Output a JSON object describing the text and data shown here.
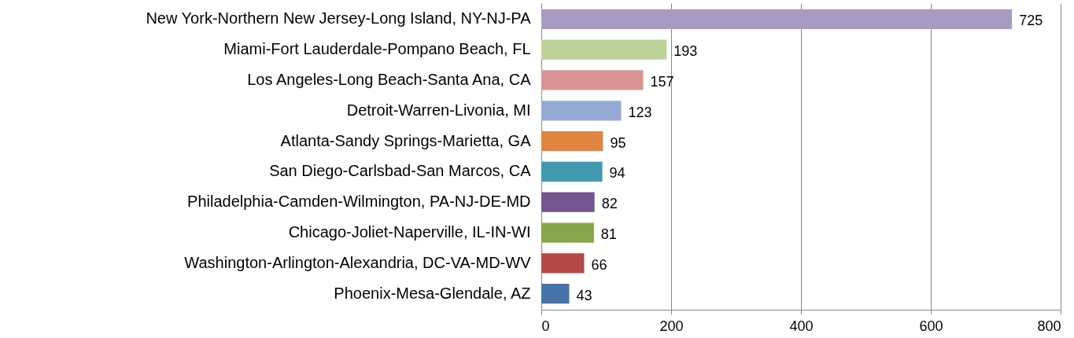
{
  "chart_data": {
    "type": "bar",
    "orientation": "horizontal",
    "categories": [
      "New York-Northern New Jersey-Long Island, NY-NJ-PA",
      "Miami-Fort Lauderdale-Pompano Beach, FL",
      "Los Angeles-Long Beach-Santa Ana, CA",
      "Detroit-Warren-Livonia, MI",
      "Atlanta-Sandy Springs-Marietta, GA",
      "San Diego-Carlsbad-San Marcos, CA",
      "Philadelphia-Camden-Wilmington, PA-NJ-DE-MD",
      "Chicago-Joliet-Naperville, IL-IN-WI",
      "Washington-Arlington-Alexandria, DC-VA-MD-WV",
      "Phoenix-Mesa-Glendale, AZ"
    ],
    "values": [
      725,
      193,
      157,
      123,
      95,
      94,
      82,
      81,
      66,
      43
    ],
    "colors": [
      "#a99bc0",
      "#bcd39a",
      "#d99594",
      "#95aad4",
      "#e0843f",
      "#4199b0",
      "#735590",
      "#89a54c",
      "#b24947",
      "#4572a8"
    ],
    "xlim": [
      0,
      800
    ],
    "xticks": [
      0,
      200,
      400,
      600,
      800
    ],
    "grid": "x",
    "data_labels": true
  }
}
